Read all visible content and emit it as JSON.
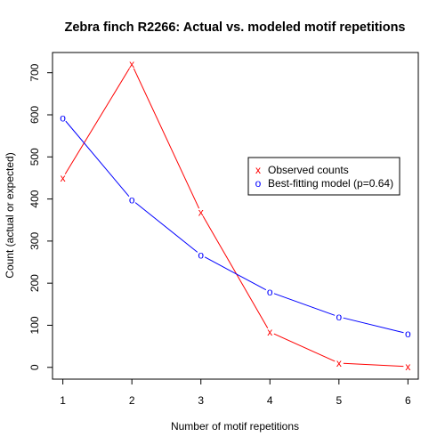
{
  "chart_data": {
    "type": "line",
    "title": "Zebra finch R2266: Actual vs. modeled motif repetitions",
    "xlabel": "Number of motif repetitions",
    "ylabel": "Count (actual or expected)",
    "x": [
      1,
      2,
      3,
      4,
      5,
      6
    ],
    "xlim": [
      0.85,
      6.15
    ],
    "ylim": [
      -28,
      748
    ],
    "xticks": [
      1,
      2,
      3,
      4,
      5,
      6
    ],
    "yticks": [
      0,
      100,
      200,
      300,
      400,
      500,
      600,
      700
    ],
    "grid": false,
    "legend_position": "right",
    "series": [
      {
        "name": "Observed counts",
        "marker": "x",
        "color": "#ff0000",
        "values": [
          450,
          720,
          368,
          84,
          10,
          2
        ]
      },
      {
        "name": "Best-fitting model (p=0.64)",
        "marker": "o",
        "color": "#0000ff",
        "values": [
          593,
          398,
          267,
          179,
          120,
          80
        ]
      }
    ]
  }
}
